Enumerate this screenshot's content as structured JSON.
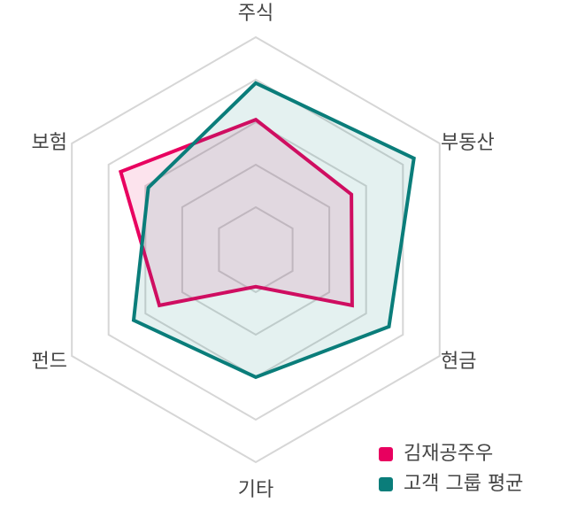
{
  "chart_data": {
    "type": "radar",
    "axes": [
      "주식",
      "부동산",
      "현금",
      "기타",
      "펀드",
      "보험"
    ],
    "rmax": 5,
    "grid_levels": [
      1,
      2,
      3,
      4,
      5
    ],
    "series": [
      {
        "name": "김재공주우",
        "values": [
          3.06,
          2.6,
          2.62,
          0.87,
          2.62,
          3.67
        ],
        "color": "#e8005f",
        "fill": "#e8005f"
      },
      {
        "name": "고객 그룹 평균",
        "values": [
          3.92,
          4.3,
          3.62,
          3.0,
          3.32,
          2.92
        ],
        "color": "#0a7d7a",
        "fill": "#0a7d7a"
      }
    ],
    "legend_position": "bottom-right",
    "grid": true
  }
}
